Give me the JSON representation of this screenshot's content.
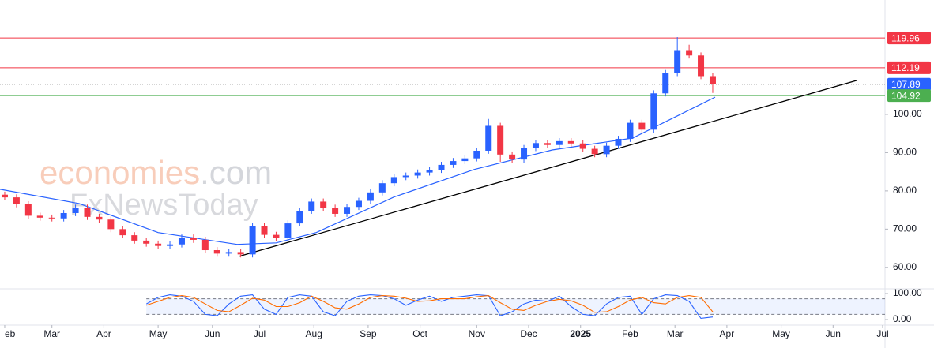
{
  "chart_data": {
    "type": "candlestick",
    "watermark": {
      "brand": "economies",
      "suffix": ".com",
      "second": "FxNewsToday"
    },
    "xlim": [
      0,
      375
    ],
    "xticks": [
      {
        "value": 2,
        "label": "eb"
      },
      {
        "value": 22,
        "label": "Mar"
      },
      {
        "value": 44,
        "label": "Apr"
      },
      {
        "value": 67,
        "label": "May"
      },
      {
        "value": 90,
        "label": "Jun"
      },
      {
        "value": 110,
        "label": "Jul"
      },
      {
        "value": 133,
        "label": "Aug"
      },
      {
        "value": 156,
        "label": "Sep"
      },
      {
        "value": 178,
        "label": "Oct"
      },
      {
        "value": 202,
        "label": "Nov"
      },
      {
        "value": 224,
        "label": "Dec"
      },
      {
        "value": 246,
        "label": "2025"
      },
      {
        "value": 267,
        "label": "Feb"
      },
      {
        "value": 286,
        "label": "Mar"
      },
      {
        "value": 308,
        "label": "Apr"
      },
      {
        "value": 331,
        "label": "May"
      },
      {
        "value": 353,
        "label": "Jun"
      },
      {
        "value": 374,
        "label": "Jul"
      }
    ],
    "ylim": [
      54.6,
      129.9
    ],
    "yticks": [
      {
        "value": 60,
        "label": "60.00"
      },
      {
        "value": 70,
        "label": "70.00"
      },
      {
        "value": 80,
        "label": "80.00"
      },
      {
        "value": 90,
        "label": "90.00"
      },
      {
        "value": 100,
        "label": "100.00"
      }
    ],
    "up_color": "#2962ff",
    "down_color": "#f23645",
    "candles": {
      "x": [
        2,
        7,
        12,
        17,
        22,
        27,
        32,
        37,
        42,
        47,
        52,
        57,
        62,
        67,
        72,
        77,
        82,
        87,
        92,
        97,
        102,
        107,
        112,
        117,
        122,
        127,
        132,
        137,
        142,
        147,
        152,
        157,
        162,
        167,
        172,
        177,
        182,
        187,
        192,
        197,
        202,
        207,
        212,
        217,
        222,
        227,
        232,
        237,
        242,
        247,
        252,
        257,
        262,
        267,
        272,
        277,
        282,
        287,
        292,
        297,
        302
      ],
      "open": [
        79.0,
        78.3,
        76.5,
        73.5,
        73.0,
        72.8,
        74.2,
        75.6,
        73.2,
        72.5,
        70.0,
        68.4,
        67.0,
        66.2,
        65.6,
        66.0,
        67.8,
        67.2,
        64.5,
        63.6,
        64.0,
        63.4,
        70.8,
        68.5,
        67.6,
        71.5,
        74.8,
        77.2,
        75.6,
        74.0,
        75.8,
        77.4,
        79.6,
        82.0,
        83.6,
        84.0,
        84.8,
        85.5,
        86.8,
        87.8,
        88.5,
        90.5,
        97.0,
        89.5,
        88.2,
        91.2,
        92.5,
        92.0,
        93.0,
        92.4,
        91.0,
        89.6,
        91.8,
        93.6,
        97.8,
        96.0,
        105.5,
        110.8,
        116.8,
        115.4,
        110.0
      ],
      "high": [
        79.8,
        79.1,
        77.3,
        74.3,
        73.8,
        75.0,
        76.4,
        76.4,
        74.0,
        73.3,
        70.8,
        69.2,
        67.8,
        67.0,
        66.8,
        68.6,
        68.6,
        68.0,
        65.3,
        64.8,
        64.8,
        71.6,
        71.6,
        69.3,
        72.3,
        75.6,
        78.0,
        78.0,
        76.4,
        76.6,
        78.2,
        80.4,
        82.8,
        84.4,
        84.8,
        85.6,
        86.3,
        87.6,
        88.6,
        89.3,
        91.3,
        98.8,
        97.8,
        90.3,
        92.0,
        93.3,
        93.3,
        93.8,
        93.8,
        93.2,
        91.8,
        92.6,
        94.4,
        98.6,
        98.6,
        106.3,
        111.6,
        120.2,
        118.2,
        116.2,
        110.8
      ],
      "low": [
        77.5,
        75.7,
        72.7,
        72.2,
        72.0,
        72.0,
        73.4,
        72.4,
        71.7,
        69.2,
        67.6,
        66.2,
        65.4,
        64.8,
        64.8,
        65.2,
        66.4,
        63.7,
        62.8,
        62.8,
        62.6,
        62.6,
        67.7,
        66.8,
        66.8,
        70.7,
        74.0,
        74.8,
        73.2,
        73.2,
        75.0,
        76.6,
        78.8,
        81.2,
        82.8,
        83.2,
        84.0,
        84.7,
        86.0,
        87.0,
        87.7,
        89.7,
        87.6,
        87.4,
        87.4,
        90.4,
        91.2,
        91.2,
        91.6,
        90.2,
        88.8,
        88.8,
        91.0,
        92.8,
        95.2,
        95.2,
        104.7,
        110.0,
        114.6,
        109.2,
        105.6
      ],
      "close": [
        78.3,
        76.5,
        73.5,
        73.0,
        72.8,
        74.2,
        75.6,
        73.2,
        72.5,
        70.0,
        68.4,
        67.0,
        66.2,
        65.6,
        66.0,
        67.8,
        67.2,
        64.5,
        63.6,
        64.0,
        63.4,
        70.8,
        68.5,
        67.6,
        71.5,
        74.8,
        77.2,
        75.6,
        74.0,
        75.8,
        77.4,
        79.6,
        82.0,
        83.6,
        84.0,
        84.8,
        85.5,
        86.8,
        87.8,
        88.5,
        90.5,
        97.0,
        89.5,
        88.2,
        91.2,
        92.5,
        92.0,
        93.0,
        92.4,
        91.0,
        89.6,
        91.8,
        93.6,
        97.8,
        96.0,
        105.5,
        110.8,
        116.8,
        115.4,
        110.0,
        107.89
      ]
    },
    "moving_average": {
      "color": "#2962ff",
      "x": [
        0,
        33.5,
        67,
        100.4,
        117,
        134,
        167,
        201,
        234,
        268,
        285,
        303
      ],
      "values": [
        80.4,
        76.7,
        69.1,
        66.0,
        66.4,
        69.1,
        78.4,
        85.6,
        90.7,
        93.8,
        99.0,
        104.5
      ]
    },
    "trendline": {
      "color": "#000000",
      "x": [
        101.4,
        363.2
      ],
      "values": [
        62.9,
        108.9
      ]
    },
    "levels": [
      {
        "value": 119.96,
        "color": "#f23645",
        "style": "solid"
      },
      {
        "value": 112.19,
        "color": "#f23645",
        "style": "solid"
      },
      {
        "value": 107.89,
        "color": "#2962ff",
        "style": "dotted"
      },
      {
        "value": 104.92,
        "color": "#4caf50",
        "style": "solid"
      }
    ],
    "stochastic": {
      "ylim": [
        0,
        100
      ],
      "yticks": [
        {
          "value": 100,
          "label": "100.00"
        },
        {
          "value": 0,
          "label": "0.00"
        }
      ],
      "band": [
        20,
        80
      ],
      "x": [
        62,
        67,
        72,
        77,
        82,
        87,
        92,
        97,
        102,
        107,
        112,
        117,
        122,
        127,
        132,
        137,
        142,
        147,
        152,
        157,
        162,
        167,
        172,
        177,
        182,
        187,
        192,
        197,
        202,
        207,
        212,
        217,
        222,
        227,
        232,
        237,
        242,
        247,
        252,
        257,
        262,
        267,
        272,
        277,
        282,
        287,
        292,
        297,
        302
      ],
      "series": [
        {
          "color": "#2962ff",
          "values": [
            60,
            85,
            95,
            90,
            70,
            20,
            15,
            60,
            90,
            95,
            40,
            20,
            85,
            95,
            90,
            30,
            15,
            70,
            90,
            95,
            92,
            80,
            55,
            75,
            90,
            70,
            85,
            90,
            95,
            92,
            15,
            30,
            60,
            75,
            70,
            90,
            50,
            20,
            15,
            60,
            85,
            90,
            20,
            80,
            95,
            92,
            70,
            5,
            10
          ]
        },
        {
          "color": "#ff6d00",
          "values": [
            55,
            70,
            85,
            92,
            85,
            60,
            35,
            30,
            55,
            82,
            75,
            50,
            50,
            65,
            90,
            70,
            45,
            40,
            60,
            85,
            92,
            90,
            82,
            70,
            72,
            80,
            80,
            80,
            88,
            92,
            65,
            40,
            35,
            55,
            70,
            78,
            72,
            55,
            28,
            30,
            50,
            75,
            85,
            65,
            60,
            85,
            92,
            85,
            30
          ]
        }
      ]
    }
  }
}
